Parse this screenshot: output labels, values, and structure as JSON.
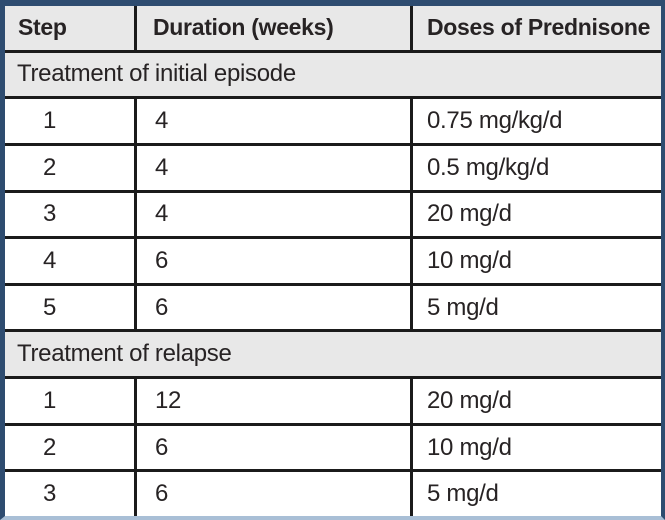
{
  "colors": {
    "border-navy": "#2e4c70",
    "border-bottom": "#a9bfd6",
    "line": "#1b1b1b",
    "shade": "#e8e8e8",
    "text": "#272324"
  },
  "table": {
    "columns": [
      "Step",
      "Duration (weeks)",
      "Doses of Prednisone"
    ],
    "sections": [
      {
        "title": "Treatment of initial episode",
        "rows": [
          {
            "step": "1",
            "duration": "4",
            "dose": "0.75 mg/kg/d"
          },
          {
            "step": "2",
            "duration": "4",
            "dose": "0.5 mg/kg/d"
          },
          {
            "step": "3",
            "duration": "4",
            "dose": "20 mg/d"
          },
          {
            "step": "4",
            "duration": "6",
            "dose": "10 mg/d"
          },
          {
            "step": "5",
            "duration": "6",
            "dose": "5 mg/d"
          }
        ]
      },
      {
        "title": "Treatment of relapse",
        "rows": [
          {
            "step": "1",
            "duration": "12",
            "dose": "20 mg/d"
          },
          {
            "step": "2",
            "duration": "6",
            "dose": "10 mg/d"
          },
          {
            "step": "3",
            "duration": "6",
            "dose": "5 mg/d"
          }
        ]
      }
    ]
  }
}
